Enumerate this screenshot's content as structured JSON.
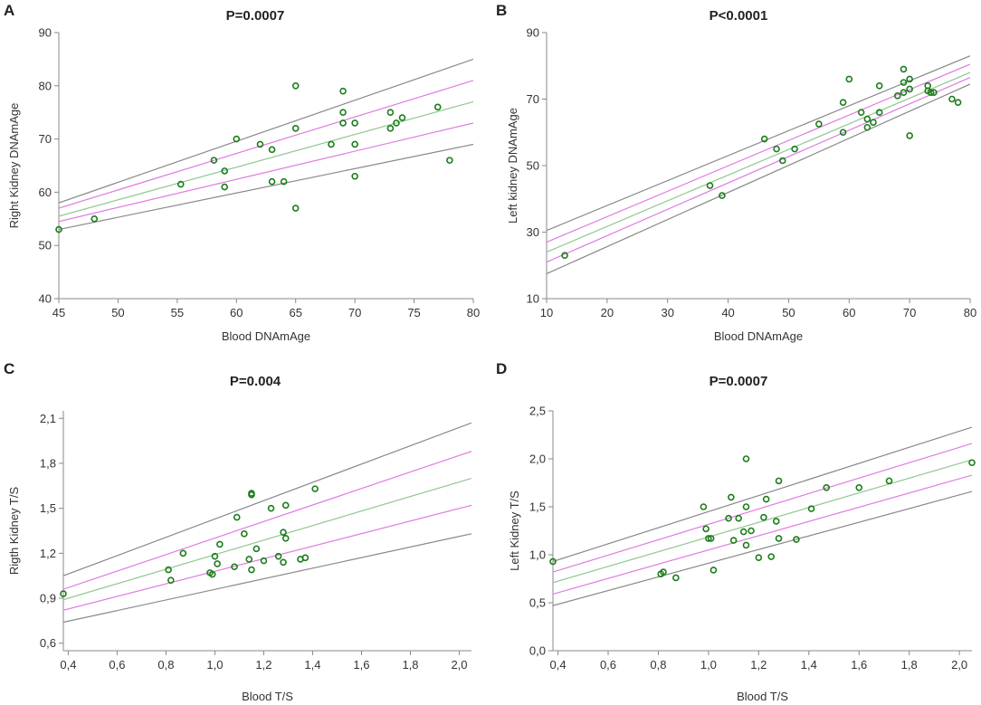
{
  "chart_data": [
    {
      "panel": "A",
      "type": "scatter",
      "title": "P=0.0007",
      "xlabel": "Blood DNAmAge",
      "ylabel": "Right Kidney  DNAmAge",
      "xlim": [
        45,
        80
      ],
      "ylim": [
        40,
        90
      ],
      "xticks": [
        45,
        50,
        55,
        60,
        65,
        70,
        75,
        80
      ],
      "yticks": [
        40,
        50,
        60,
        70,
        80,
        90
      ],
      "xtick_labels": [
        "45",
        "50",
        "55",
        "60",
        "65",
        "70",
        "75",
        "80"
      ],
      "ytick_labels": [
        "40",
        "50",
        "60",
        "70",
        "80",
        "90"
      ],
      "grid": false,
      "points": [
        [
          45,
          53
        ],
        [
          48,
          55
        ],
        [
          55.3,
          61.5
        ],
        [
          58.1,
          66
        ],
        [
          59,
          64
        ],
        [
          59,
          61
        ],
        [
          60,
          70
        ],
        [
          62,
          69
        ],
        [
          63,
          68
        ],
        [
          63,
          62
        ],
        [
          64,
          62
        ],
        [
          65,
          80
        ],
        [
          65,
          72
        ],
        [
          65,
          57
        ],
        [
          68,
          69
        ],
        [
          69,
          79
        ],
        [
          69,
          75
        ],
        [
          69,
          73
        ],
        [
          70,
          73
        ],
        [
          70,
          69
        ],
        [
          70,
          63
        ],
        [
          73,
          75
        ],
        [
          73,
          72
        ],
        [
          73.5,
          73
        ],
        [
          74,
          74
        ],
        [
          77,
          76
        ],
        [
          78,
          66
        ]
      ],
      "lines": [
        {
          "name": "upper-95",
          "color": "#888888",
          "y_at_xmin": 58,
          "y_at_xmax": 85
        },
        {
          "name": "upper-mean",
          "color": "#e07be0",
          "y_at_xmin": 57,
          "y_at_xmax": 81
        },
        {
          "name": "fit",
          "color": "#8fc88f",
          "y_at_xmin": 55.5,
          "y_at_xmax": 77
        },
        {
          "name": "lower-mean",
          "color": "#e07be0",
          "y_at_xmin": 54.5,
          "y_at_xmax": 73
        },
        {
          "name": "lower-95",
          "color": "#888888",
          "y_at_xmin": 53,
          "y_at_xmax": 69
        }
      ]
    },
    {
      "panel": "B",
      "type": "scatter",
      "title": "P<0.0001",
      "xlabel": "Blood DNAmAge",
      "ylabel": "Left kidney DNAmAge",
      "xlim": [
        10,
        80
      ],
      "ylim": [
        10,
        90
      ],
      "xticks": [
        10,
        20,
        30,
        40,
        50,
        60,
        70,
        80
      ],
      "yticks": [
        10,
        30,
        50,
        70,
        90
      ],
      "xtick_labels": [
        "10",
        "20",
        "30",
        "40",
        "50",
        "60",
        "70",
        "80"
      ],
      "ytick_labels": [
        "10",
        "30",
        "50",
        "70",
        "90"
      ],
      "grid": false,
      "points": [
        [
          13,
          23
        ],
        [
          37,
          44
        ],
        [
          39,
          41
        ],
        [
          46,
          58
        ],
        [
          48,
          55
        ],
        [
          49,
          51.5
        ],
        [
          51,
          55
        ],
        [
          55,
          62.5
        ],
        [
          59,
          69
        ],
        [
          59,
          60
        ],
        [
          60,
          76
        ],
        [
          62,
          66
        ],
        [
          63,
          64
        ],
        [
          63,
          61.5
        ],
        [
          64,
          63
        ],
        [
          65,
          74
        ],
        [
          65,
          66
        ],
        [
          68,
          71
        ],
        [
          69,
          79
        ],
        [
          69,
          75
        ],
        [
          69,
          72
        ],
        [
          70,
          76
        ],
        [
          70,
          73
        ],
        [
          70,
          59
        ],
        [
          73,
          74
        ],
        [
          73,
          72.5
        ],
        [
          73.5,
          72
        ],
        [
          74,
          72
        ],
        [
          77,
          70
        ],
        [
          78,
          69
        ]
      ],
      "lines": [
        {
          "name": "upper-95",
          "color": "#888888",
          "y_at_xmin": 30.5,
          "y_at_xmax": 83
        },
        {
          "name": "upper-mean",
          "color": "#e07be0",
          "y_at_xmin": 27,
          "y_at_xmax": 80.5
        },
        {
          "name": "fit",
          "color": "#8fc88f",
          "y_at_xmin": 24,
          "y_at_xmax": 78
        },
        {
          "name": "lower-mean",
          "color": "#e07be0",
          "y_at_xmin": 21,
          "y_at_xmax": 76.5
        },
        {
          "name": "lower-95",
          "color": "#888888",
          "y_at_xmin": 17.5,
          "y_at_xmax": 74.5
        }
      ]
    },
    {
      "panel": "C",
      "type": "scatter",
      "title": "P=0.004",
      "xlabel": "Blood T/S",
      "ylabel": "Rigth Kidney T/S",
      "xlim": [
        0.38,
        2.05
      ],
      "ylim": [
        0.55,
        2.15
      ],
      "xticks": [
        0.4,
        0.6,
        0.8,
        1.0,
        1.2,
        1.4,
        1.6,
        1.8,
        2.0
      ],
      "yticks": [
        0.6,
        0.9,
        1.2,
        1.5,
        1.8,
        2.1
      ],
      "xtick_labels": [
        "0,4",
        "0,6",
        "0,8",
        "1,0",
        "1,2",
        "1,4",
        "1,6",
        "1,8",
        "2,0"
      ],
      "ytick_labels": [
        "0,6",
        "0,9",
        "1,2",
        "1,5",
        "1,8",
        "2,1"
      ],
      "grid": false,
      "points": [
        [
          0.38,
          0.93
        ],
        [
          0.81,
          1.09
        ],
        [
          0.82,
          1.02
        ],
        [
          0.87,
          1.2
        ],
        [
          0.98,
          1.07
        ],
        [
          0.99,
          1.06
        ],
        [
          1.0,
          1.18
        ],
        [
          1.01,
          1.13
        ],
        [
          1.02,
          1.26
        ],
        [
          1.08,
          1.11
        ],
        [
          1.09,
          1.44
        ],
        [
          1.12,
          1.33
        ],
        [
          1.14,
          1.16
        ],
        [
          1.15,
          1.6
        ],
        [
          1.15,
          1.59
        ],
        [
          1.15,
          1.09
        ],
        [
          1.17,
          1.23
        ],
        [
          1.2,
          1.15
        ],
        [
          1.23,
          1.5
        ],
        [
          1.26,
          1.18
        ],
        [
          1.28,
          1.34
        ],
        [
          1.28,
          1.14
        ],
        [
          1.29,
          1.52
        ],
        [
          1.29,
          1.3
        ],
        [
          1.35,
          1.16
        ],
        [
          1.37,
          1.17
        ],
        [
          1.41,
          1.63
        ]
      ],
      "lines": [
        {
          "name": "upper-95",
          "color": "#888888",
          "y_at_xmin": 1.05,
          "y_at_xmax": 2.07
        },
        {
          "name": "upper-mean",
          "color": "#e07be0",
          "y_at_xmin": 0.96,
          "y_at_xmax": 1.88
        },
        {
          "name": "fit",
          "color": "#8fc88f",
          "y_at_xmin": 0.89,
          "y_at_xmax": 1.7
        },
        {
          "name": "lower-mean",
          "color": "#e07be0",
          "y_at_xmin": 0.82,
          "y_at_xmax": 1.52
        },
        {
          "name": "lower-95",
          "color": "#888888",
          "y_at_xmin": 0.74,
          "y_at_xmax": 1.33
        }
      ]
    },
    {
      "panel": "D",
      "type": "scatter",
      "title": "P=0.0007",
      "xlabel": "Blood T/S",
      "ylabel": "Left Kidney T/S",
      "xlim": [
        0.38,
        2.05
      ],
      "ylim": [
        0.0,
        2.5
      ],
      "xticks": [
        0.4,
        0.6,
        0.8,
        1.0,
        1.2,
        1.4,
        1.6,
        1.8,
        2.0
      ],
      "yticks": [
        0.0,
        0.5,
        1.0,
        1.5,
        2.0,
        2.5
      ],
      "xtick_labels": [
        "0,4",
        "0,6",
        "0,8",
        "1,0",
        "1,2",
        "1,4",
        "1,6",
        "1,8",
        "2,0"
      ],
      "ytick_labels": [
        "0,0",
        "0,5",
        "1,0",
        "1,5",
        "2,0",
        "2,5"
      ],
      "grid": false,
      "points": [
        [
          0.38,
          0.93
        ],
        [
          0.81,
          0.8
        ],
        [
          0.82,
          0.82
        ],
        [
          0.87,
          0.76
        ],
        [
          0.98,
          1.5
        ],
        [
          0.99,
          1.27
        ],
        [
          1.0,
          1.17
        ],
        [
          1.01,
          1.17
        ],
        [
          1.02,
          0.84
        ],
        [
          1.08,
          1.38
        ],
        [
          1.09,
          1.6
        ],
        [
          1.1,
          1.15
        ],
        [
          1.12,
          1.38
        ],
        [
          1.14,
          1.24
        ],
        [
          1.15,
          2.0
        ],
        [
          1.15,
          1.5
        ],
        [
          1.15,
          1.1
        ],
        [
          1.17,
          1.25
        ],
        [
          1.2,
          0.97
        ],
        [
          1.22,
          1.39
        ],
        [
          1.23,
          1.58
        ],
        [
          1.25,
          0.98
        ],
        [
          1.27,
          1.35
        ],
        [
          1.28,
          1.17
        ],
        [
          1.28,
          1.77
        ],
        [
          1.35,
          1.16
        ],
        [
          1.41,
          1.48
        ],
        [
          1.47,
          1.7
        ],
        [
          1.6,
          1.7
        ],
        [
          1.72,
          1.77
        ],
        [
          2.05,
          1.96
        ]
      ],
      "lines": [
        {
          "name": "upper-95",
          "color": "#888888",
          "y_at_xmin": 0.93,
          "y_at_xmax": 2.33
        },
        {
          "name": "upper-mean",
          "color": "#e07be0",
          "y_at_xmin": 0.82,
          "y_at_xmax": 2.16
        },
        {
          "name": "fit",
          "color": "#8fc88f",
          "y_at_xmin": 0.71,
          "y_at_xmax": 1.99
        },
        {
          "name": "lower-mean",
          "color": "#e07be0",
          "y_at_xmin": 0.59,
          "y_at_xmax": 1.83
        },
        {
          "name": "lower-95",
          "color": "#888888",
          "y_at_xmin": 0.47,
          "y_at_xmax": 1.66
        }
      ]
    }
  ]
}
